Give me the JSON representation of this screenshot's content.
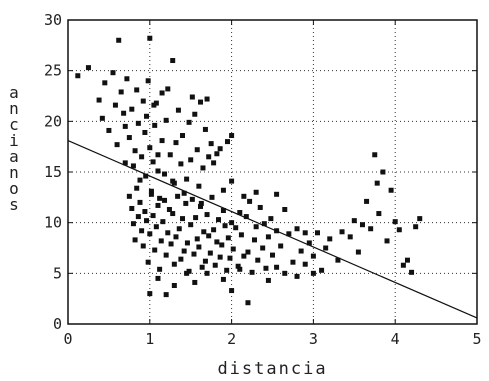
{
  "chart_data": {
    "type": "scatter",
    "title": "",
    "xlabel": "distancia",
    "ylabel": "ancianos",
    "xlim": [
      0,
      5
    ],
    "ylim": [
      0,
      30
    ],
    "xticks": [
      "0",
      "1",
      "2",
      "3",
      "4",
      "5"
    ],
    "yticks": [
      "0",
      "5",
      "10",
      "15",
      "20",
      "25",
      "30"
    ],
    "grid": "dotted",
    "colors": {
      "points": "#111111",
      "line": "#111111",
      "grid": "#333333"
    },
    "fit_line": {
      "x": [
        0,
        5
      ],
      "y": [
        18.1,
        0.6
      ]
    },
    "points": [
      [
        0.12,
        24.5
      ],
      [
        0.25,
        25.3
      ],
      [
        0.38,
        22.1
      ],
      [
        0.42,
        20.3
      ],
      [
        0.45,
        23.8
      ],
      [
        0.5,
        19.1
      ],
      [
        0.55,
        24.8
      ],
      [
        0.58,
        21.6
      ],
      [
        0.6,
        17.7
      ],
      [
        0.62,
        28.0
      ],
      [
        0.65,
        22.9
      ],
      [
        0.68,
        20.8
      ],
      [
        0.7,
        19.5
      ],
      [
        0.72,
        24.2
      ],
      [
        0.75,
        18.4
      ],
      [
        0.78,
        21.2
      ],
      [
        0.8,
        15.6
      ],
      [
        0.82,
        17.1
      ],
      [
        0.84,
        23.1
      ],
      [
        0.86,
        19.8
      ],
      [
        0.88,
        14.2
      ],
      [
        0.9,
        16.5
      ],
      [
        0.92,
        22.0
      ],
      [
        0.94,
        18.9
      ],
      [
        0.96,
        20.5
      ],
      [
        0.98,
        24.0
      ],
      [
        1.0,
        17.4
      ],
      [
        1.02,
        13.1
      ],
      [
        1.04,
        16.0
      ],
      [
        1.06,
        19.6
      ],
      [
        1.08,
        21.8
      ],
      [
        1.1,
        15.1
      ],
      [
        1.12,
        12.4
      ],
      [
        1.15,
        18.1
      ],
      [
        1.18,
        14.8
      ],
      [
        1.2,
        20.1
      ],
      [
        1.22,
        23.2
      ],
      [
        1.25,
        16.7
      ],
      [
        1.28,
        26.0
      ],
      [
        1.3,
        13.9
      ],
      [
        1.32,
        17.9
      ],
      [
        1.35,
        21.1
      ],
      [
        1.38,
        15.8
      ],
      [
        1.4,
        18.6
      ],
      [
        1.42,
        12.9
      ],
      [
        1.45,
        14.3
      ],
      [
        1.48,
        19.9
      ],
      [
        1.5,
        16.2
      ],
      [
        1.52,
        22.4
      ],
      [
        1.55,
        20.7
      ],
      [
        1.58,
        17.2
      ],
      [
        1.6,
        13.6
      ],
      [
        1.62,
        21.9
      ],
      [
        1.65,
        15.4
      ],
      [
        1.68,
        19.2
      ],
      [
        1.7,
        22.2
      ],
      [
        1.75,
        17.8
      ],
      [
        1.78,
        15.9
      ],
      [
        1.82,
        16.8
      ],
      [
        1.86,
        17.3
      ],
      [
        1.9,
        13.2
      ],
      [
        1.95,
        18.0
      ],
      [
        2.0,
        14.1
      ],
      [
        0.75,
        12.6
      ],
      [
        0.78,
        11.4
      ],
      [
        0.8,
        9.9
      ],
      [
        0.82,
        8.3
      ],
      [
        0.84,
        13.4
      ],
      [
        0.86,
        10.6
      ],
      [
        0.88,
        12.0
      ],
      [
        0.9,
        9.2
      ],
      [
        0.92,
        7.7
      ],
      [
        0.94,
        11.1
      ],
      [
        0.96,
        10.2
      ],
      [
        0.98,
        6.1
      ],
      [
        1.0,
        8.9
      ],
      [
        1.02,
        12.8
      ],
      [
        1.04,
        10.7
      ],
      [
        1.06,
        7.3
      ],
      [
        1.08,
        9.6
      ],
      [
        1.1,
        11.7
      ],
      [
        1.12,
        5.4
      ],
      [
        1.14,
        8.2
      ],
      [
        1.16,
        10.1
      ],
      [
        1.18,
        12.2
      ],
      [
        1.2,
        6.8
      ],
      [
        1.22,
        9.0
      ],
      [
        1.24,
        11.3
      ],
      [
        1.26,
        7.9
      ],
      [
        1.28,
        10.9
      ],
      [
        1.3,
        5.9
      ],
      [
        1.32,
        8.6
      ],
      [
        1.34,
        12.6
      ],
      [
        1.36,
        9.4
      ],
      [
        1.38,
        6.4
      ],
      [
        1.4,
        10.4
      ],
      [
        1.42,
        7.2
      ],
      [
        1.44,
        11.9
      ],
      [
        1.46,
        8.0
      ],
      [
        1.48,
        5.2
      ],
      [
        1.5,
        9.8
      ],
      [
        1.52,
        12.3
      ],
      [
        1.54,
        6.9
      ],
      [
        1.56,
        10.5
      ],
      [
        1.58,
        8.4
      ],
      [
        1.6,
        7.6
      ],
      [
        1.62,
        11.6
      ],
      [
        1.64,
        5.6
      ],
      [
        1.66,
        9.1
      ],
      [
        1.68,
        6.2
      ],
      [
        1.7,
        10.8
      ],
      [
        1.72,
        8.7
      ],
      [
        1.74,
        7.0
      ],
      [
        1.76,
        12.5
      ],
      [
        1.78,
        9.3
      ],
      [
        1.8,
        5.8
      ],
      [
        1.82,
        8.1
      ],
      [
        1.84,
        10.3
      ],
      [
        1.86,
        6.6
      ],
      [
        1.88,
        7.8
      ],
      [
        1.9,
        11.2
      ],
      [
        1.92,
        9.7
      ],
      [
        1.94,
        5.3
      ],
      [
        1.96,
        8.5
      ],
      [
        1.98,
        6.5
      ],
      [
        2.0,
        10.0
      ],
      [
        2.02,
        7.4
      ],
      [
        2.05,
        9.5
      ],
      [
        2.08,
        5.7
      ],
      [
        2.1,
        11.0
      ],
      [
        2.12,
        8.8
      ],
      [
        2.15,
        6.7
      ],
      [
        2.18,
        10.6
      ],
      [
        2.2,
        7.1
      ],
      [
        2.22,
        12.1
      ],
      [
        2.25,
        5.1
      ],
      [
        2.28,
        8.3
      ],
      [
        2.3,
        9.6
      ],
      [
        2.32,
        6.3
      ],
      [
        2.35,
        11.5
      ],
      [
        2.38,
        7.5
      ],
      [
        2.4,
        9.9
      ],
      [
        2.42,
        5.5
      ],
      [
        2.45,
        8.6
      ],
      [
        2.48,
        10.4
      ],
      [
        2.5,
        6.8
      ],
      [
        2.55,
        9.2
      ],
      [
        2.6,
        7.7
      ],
      [
        2.65,
        5.0
      ],
      [
        2.7,
        8.9
      ],
      [
        2.75,
        6.1
      ],
      [
        2.8,
        9.4
      ],
      [
        2.85,
        7.2
      ],
      [
        2.9,
        5.9
      ],
      [
        2.95,
        8.0
      ],
      [
        3.0,
        6.7
      ],
      [
        3.05,
        9.0
      ],
      [
        3.1,
        5.3
      ],
      [
        3.15,
        7.5
      ],
      [
        3.2,
        8.4
      ],
      [
        3.3,
        6.3
      ],
      [
        3.35,
        9.1
      ],
      [
        3.45,
        8.6
      ],
      [
        3.5,
        10.2
      ],
      [
        3.55,
        7.1
      ],
      [
        3.6,
        9.8
      ],
      [
        3.65,
        12.1
      ],
      [
        3.7,
        9.4
      ],
      [
        3.75,
        16.7
      ],
      [
        3.78,
        13.9
      ],
      [
        3.8,
        10.9
      ],
      [
        3.85,
        15.0
      ],
      [
        3.9,
        8.2
      ],
      [
        3.95,
        13.2
      ],
      [
        4.0,
        10.1
      ],
      [
        4.05,
        9.3
      ],
      [
        4.1,
        5.8
      ],
      [
        4.15,
        6.3
      ],
      [
        4.2,
        5.1
      ],
      [
        4.25,
        9.6
      ],
      [
        4.3,
        10.4
      ],
      [
        1.0,
        3.0
      ],
      [
        1.2,
        2.9
      ],
      [
        1.1,
        4.5
      ],
      [
        1.3,
        3.8
      ],
      [
        1.55,
        4.1
      ],
      [
        2.0,
        3.3
      ],
      [
        2.2,
        2.1
      ],
      [
        2.45,
        4.3
      ],
      [
        2.8,
        4.7
      ],
      [
        1.9,
        4.4
      ],
      [
        1.7,
        5.0
      ],
      [
        1.45,
        5.0
      ],
      [
        2.1,
        5.4
      ],
      [
        2.55,
        5.6
      ],
      [
        3.0,
        5.0
      ],
      [
        1.0,
        28.2
      ],
      [
        2.15,
        12.6
      ],
      [
        2.55,
        12.8
      ],
      [
        2.3,
        13.0
      ],
      [
        2.65,
        11.3
      ],
      [
        2.9,
        9.0
      ],
      [
        2.0,
        18.6
      ],
      [
        1.72,
        16.5
      ],
      [
        1.63,
        11.9
      ],
      [
        1.28,
        14.1
      ],
      [
        1.1,
        16.7
      ],
      [
        0.95,
        14.6
      ],
      [
        1.05,
        21.6
      ],
      [
        1.15,
        22.8
      ],
      [
        0.7,
        15.9
      ]
    ]
  }
}
